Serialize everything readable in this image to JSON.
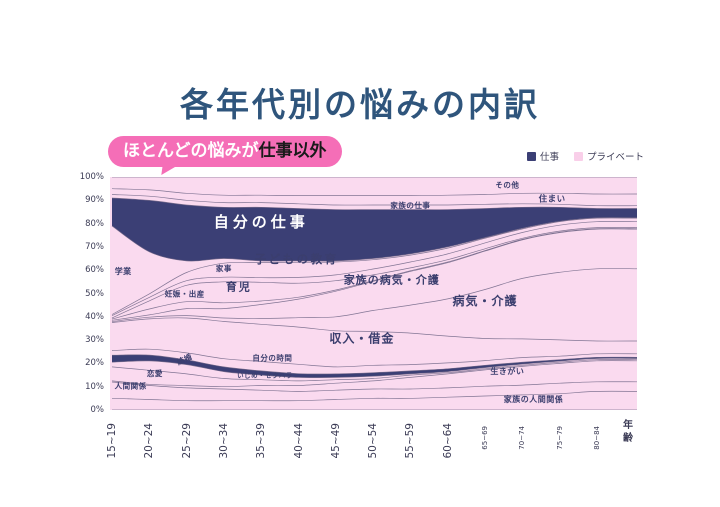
{
  "title": "各年代別の悩みの内訳",
  "callout": {
    "highlight": "ほとんどの悩みが",
    "emphasis": "仕事以外",
    "bg": "#F56EB7"
  },
  "legend": {
    "items": [
      {
        "label": "仕事",
        "color": "#3B3F75"
      },
      {
        "label": "プライベート",
        "color": "#F9CFE9"
      }
    ]
  },
  "axes": {
    "y_ticks": [
      "100%",
      "90%",
      "80%",
      "70%",
      "60%",
      "50%",
      "40%",
      "30%",
      "20%",
      "10%",
      "0%"
    ],
    "x_axis_title": "年齢"
  },
  "chart_data": {
    "type": "area",
    "subtype": "100-percent-stacked-stream",
    "title": "各年代別の悩みの内訳",
    "xlabel": "年齢",
    "ylabel": "",
    "ylim": [
      0,
      100
    ],
    "grid": false,
    "legend_position": "top-right",
    "categories": [
      "15~19",
      "20~24",
      "25~29",
      "30~34",
      "35~39",
      "40~44",
      "45~49",
      "50~54",
      "55~59",
      "60~64",
      "65~69",
      "70~74",
      "75~79",
      "80~84"
    ],
    "small_category_from_index": 10,
    "colors": {
      "plot_background": "#FADAEF",
      "band_fill": "#FADAEF",
      "accent_navy": "#3B3F75",
      "boundary_line": "#6C6384",
      "label_text": "#3B3E6E",
      "label_text_inverse": "#ffffff"
    },
    "series": [
      {
        "name": "家族の人間関係",
        "fill": "pink",
        "values": [
          5,
          4.5,
          4,
          4,
          4,
          4,
          4.5,
          5,
          5,
          5.5,
          6,
          6.5,
          7,
          8
        ]
      },
      {
        "name": "人間関係",
        "fill": "pink",
        "values": [
          7,
          6,
          5.5,
          5,
          4.5,
          4,
          4,
          4,
          4,
          4,
          4.2,
          4.2,
          4.5,
          4.1
        ]
      },
      {
        "name": "生きがい",
        "fill": "pink",
        "values": [
          0.5,
          0.5,
          1,
          1,
          2,
          2.5,
          3,
          3.5,
          5,
          6,
          7,
          8,
          8.5,
          9
        ]
      },
      {
        "name": "恋愛",
        "fill": "pink",
        "values": [
          6,
          6,
          5,
          3.5,
          2.5,
          2,
          1.5,
          1,
          1,
          0.5,
          0.5,
          0.5,
          0.5,
          0.5
        ]
      },
      {
        "name": "結婚",
        "fill": "pink",
        "values": [
          2,
          4,
          4,
          3,
          2,
          1.5,
          1,
          1,
          0.5,
          0.5,
          0.5,
          0.5,
          0.5,
          0.5
        ]
      },
      {
        "name": "いじめ・セクハラ",
        "fill": "navy",
        "values": [
          3,
          2.5,
          2,
          2,
          1.8,
          1.6,
          1.5,
          1.5,
          1.3,
          1.2,
          1,
          0.8,
          0.6,
          0.5
        ]
      },
      {
        "name": "自分の時間",
        "fill": "pink",
        "values": [
          2,
          2.5,
          3,
          3.5,
          4,
          4,
          3,
          3.2,
          2.7,
          2.5,
          2,
          2,
          1.5,
          1.5
        ]
      },
      {
        "name": "収入・借金",
        "fill": "pink",
        "values": [
          12,
          13,
          15,
          16,
          16,
          16,
          15.5,
          14.5,
          13.5,
          11.5,
          9.5,
          8,
          7,
          5.5
        ]
      },
      {
        "name": "病気・介護",
        "fill": "pink",
        "values": [
          0.5,
          0.7,
          1,
          1.5,
          2.5,
          4,
          6,
          9,
          12,
          16,
          21,
          26,
          29,
          31
        ]
      },
      {
        "name": "家族の病気・介護",
        "fill": "pink",
        "values": [
          0.5,
          1,
          3,
          4,
          6,
          8,
          11,
          12.5,
          14.5,
          15.5,
          16.5,
          16.5,
          17,
          17
        ]
      },
      {
        "name": "妊娠・出産",
        "fill": "pink",
        "values": [
          0.5,
          2.5,
          3,
          2.5,
          1.5,
          0.8,
          0.5,
          0.3,
          0.3,
          0.3,
          0.2,
          0.2,
          0.2,
          0.2
        ]
      },
      {
        "name": "育児",
        "fill": "pink",
        "values": [
          0.5,
          3.5,
          7,
          9,
          8,
          6,
          4,
          2.5,
          1.2,
          1,
          0.8,
          0.5,
          0.5,
          0.5
        ]
      },
      {
        "name": "家事",
        "fill": "pink",
        "values": [
          1,
          1.5,
          2,
          2,
          2,
          2.5,
          2.5,
          2.5,
          2.5,
          2.5,
          2.5,
          2.5,
          2.5,
          2.5
        ]
      },
      {
        "name": "子どもの教育",
        "fill": "pink",
        "values": [
          0.5,
          1.5,
          3.5,
          6,
          6.5,
          6.5,
          5.5,
          4,
          3,
          2.5,
          2,
          1.5,
          1.5,
          1.5
        ]
      },
      {
        "name": "学業",
        "fill": "pink",
        "values": [
          38,
          18,
          5,
          2,
          0.7,
          0.6,
          0.5,
          0.5,
          0.5,
          0.5,
          0.3,
          0.3,
          0.2,
          0.2
        ]
      },
      {
        "name": "自分の仕事",
        "fill": "navy",
        "values": [
          12,
          22,
          24,
          22,
          23,
          22.5,
          22,
          21,
          19,
          16,
          12.5,
          9,
          6,
          4
        ]
      },
      {
        "name": "家族の仕事",
        "fill": "pink",
        "values": [
          1.5,
          1.8,
          2,
          2,
          2,
          2,
          2,
          2,
          2,
          2,
          1.8,
          1.5,
          1.3,
          1.2
        ]
      },
      {
        "name": "住まい",
        "fill": "pink",
        "values": [
          2.5,
          2.7,
          3,
          3.2,
          3.2,
          3.5,
          4,
          4,
          4,
          4.2,
          4.2,
          4.5,
          4.7,
          5
        ]
      },
      {
        "name": "その他",
        "fill": "pink",
        "values": [
          5,
          5.5,
          7,
          7.8,
          7.8,
          8,
          8,
          8,
          8,
          7.8,
          7.5,
          7,
          7,
          7.3
        ]
      }
    ],
    "labels": [
      {
        "text": "学業",
        "x": 0.3,
        "y": 59.5,
        "size": 8
      },
      {
        "text": "妊娠・出産",
        "x": 1.95,
        "y": 49.5,
        "size": 7.5
      },
      {
        "text": "家事",
        "x": 3.0,
        "y": 60.5,
        "size": 7.5
      },
      {
        "text": "育児",
        "x": 3.4,
        "y": 52.5,
        "size": 11,
        "ls": 2
      },
      {
        "text": "子どもの教育",
        "x": 4.95,
        "y": 64.5,
        "size": 11.5,
        "ls": 2.5
      },
      {
        "text": "自分の仕事",
        "x": 4.0,
        "y": 80.5,
        "size": 15,
        "ls": 4,
        "bold": true,
        "inverse": true
      },
      {
        "text": "家族の病気・介護",
        "x": 7.5,
        "y": 55.5,
        "size": 11,
        "ls": 1
      },
      {
        "text": "病気・介護",
        "x": 10.0,
        "y": 46.5,
        "size": 12,
        "ls": 1
      },
      {
        "text": "収入・借金",
        "x": 6.7,
        "y": 30.5,
        "size": 12,
        "ls": 1
      },
      {
        "text": "自分の時間",
        "x": 4.3,
        "y": 22.0,
        "size": 7.5
      },
      {
        "text": "いじめ・セクハラ",
        "x": 4.1,
        "y": 14.8,
        "size": 6.5
      },
      {
        "text": "結婚",
        "x": 1.95,
        "y": 21.5,
        "size": 7.5,
        "rotate": -25
      },
      {
        "text": "恋愛",
        "x": 1.15,
        "y": 15.5,
        "size": 7.5
      },
      {
        "text": "人間関係",
        "x": 0.5,
        "y": 10.0,
        "size": 7.5
      },
      {
        "text": "生きがい",
        "x": 10.6,
        "y": 16.5,
        "size": 8
      },
      {
        "text": "家族の人間関係",
        "x": 11.3,
        "y": 4.5,
        "size": 8
      },
      {
        "text": "家族の仕事",
        "x": 8.0,
        "y": 87.5,
        "size": 7.5
      },
      {
        "text": "住まい",
        "x": 11.8,
        "y": 90.5,
        "size": 8.5
      },
      {
        "text": "その他",
        "x": 10.6,
        "y": 96.3,
        "size": 7.5
      }
    ]
  }
}
